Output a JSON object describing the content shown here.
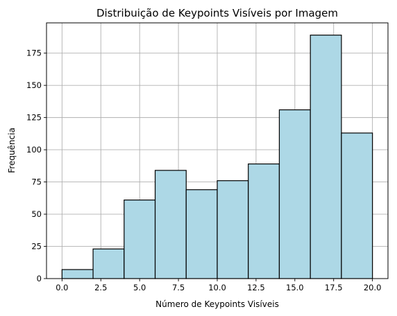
{
  "chart_data": {
    "type": "bar",
    "title": "Distribuição de Keypoints Visíveis por Imagem",
    "xlabel": "Número de Keypoints Visíveis",
    "ylabel": "Frequência",
    "bins": [
      {
        "x0": 0,
        "x1": 2,
        "value": 7
      },
      {
        "x0": 2,
        "x1": 4,
        "value": 23
      },
      {
        "x0": 4,
        "x1": 6,
        "value": 61
      },
      {
        "x0": 6,
        "x1": 8,
        "value": 84
      },
      {
        "x0": 8,
        "x1": 10,
        "value": 69
      },
      {
        "x0": 10,
        "x1": 12,
        "value": 76
      },
      {
        "x0": 12,
        "x1": 14,
        "value": 89
      },
      {
        "x0": 14,
        "x1": 16,
        "value": 131
      },
      {
        "x0": 16,
        "x1": 18,
        "value": 189
      },
      {
        "x0": 18,
        "x1": 20,
        "value": 113
      }
    ],
    "xlim": [
      -1,
      21
    ],
    "ylim": [
      0,
      198.5
    ],
    "xticks": [
      0.0,
      2.5,
      5.0,
      7.5,
      10.0,
      12.5,
      15.0,
      17.5,
      20.0
    ],
    "xtick_labels": [
      "0.0",
      "2.5",
      "5.0",
      "7.5",
      "10.0",
      "12.5",
      "15.0",
      "17.5",
      "20.0"
    ],
    "yticks": [
      0,
      25,
      50,
      75,
      100,
      125,
      150,
      175
    ],
    "ytick_labels": [
      "0",
      "25",
      "50",
      "75",
      "100",
      "125",
      "150",
      "175"
    ],
    "grid": true,
    "colors": {
      "bar_fill": "#add8e6",
      "bar_edge": "#000000",
      "grid": "#b0b0b0"
    }
  }
}
